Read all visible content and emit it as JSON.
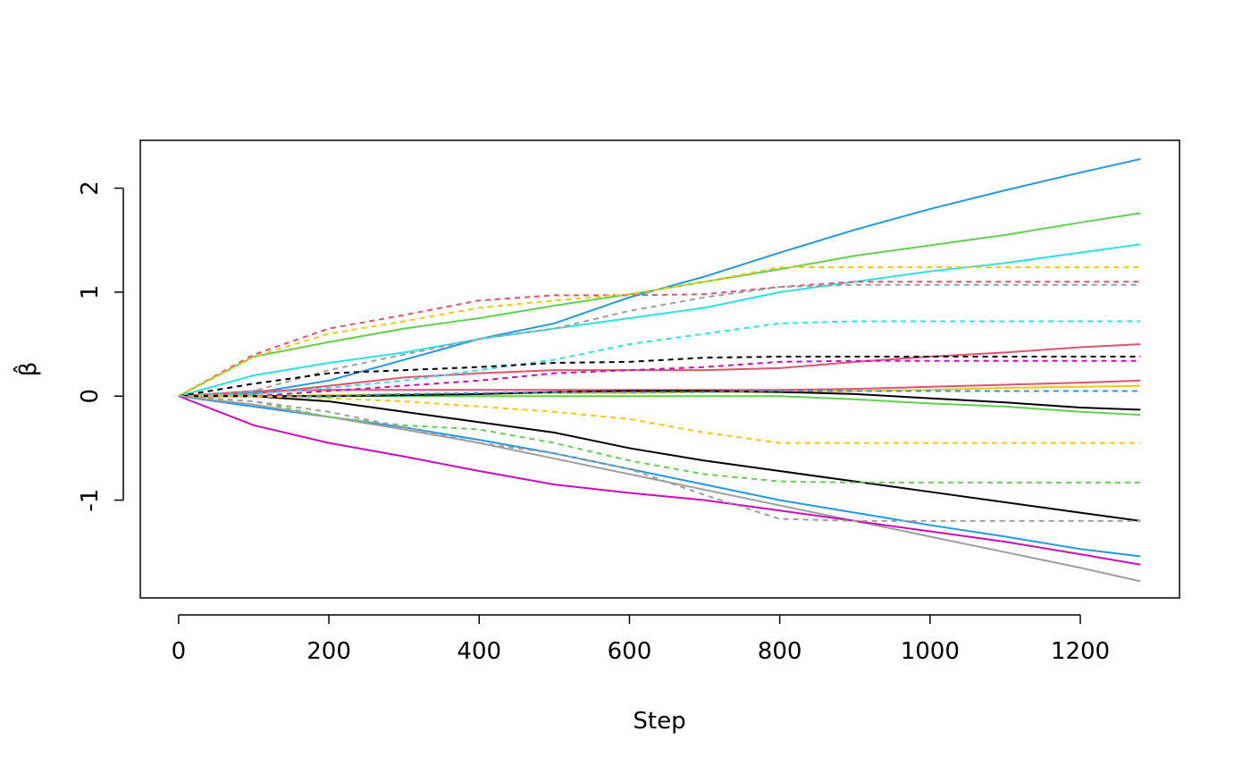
{
  "chart_data": {
    "type": "line",
    "xlabel": "Step",
    "ylabel": "β̂",
    "x": [
      0,
      100,
      200,
      300,
      400,
      500,
      600,
      700,
      800,
      900,
      1000,
      1100,
      1200,
      1280
    ],
    "xlim": [
      -51,
      1332
    ],
    "ylim": [
      -1.94,
      2.46
    ],
    "xticks": [
      0,
      200,
      400,
      600,
      800,
      1000,
      1200
    ],
    "yticks": [
      -1,
      0,
      1,
      2
    ],
    "series": [
      {
        "color": "#2297E6",
        "dashed": false,
        "values": [
          0,
          0.03,
          0.15,
          0.35,
          0.55,
          0.7,
          0.95,
          1.15,
          1.38,
          1.6,
          1.8,
          1.98,
          2.15,
          2.28
        ]
      },
      {
        "color": "#61D04F",
        "dashed": false,
        "values": [
          0,
          0.38,
          0.52,
          0.65,
          0.75,
          0.87,
          0.98,
          1.1,
          1.22,
          1.35,
          1.45,
          1.55,
          1.67,
          1.76
        ]
      },
      {
        "color": "#28E2E5",
        "dashed": false,
        "values": [
          0,
          0.2,
          0.32,
          0.42,
          0.55,
          0.65,
          0.75,
          0.85,
          1.0,
          1.1,
          1.2,
          1.28,
          1.38,
          1.46
        ]
      },
      {
        "color": "#DF536B",
        "dashed": false,
        "values": [
          0,
          0.02,
          0.1,
          0.18,
          0.22,
          0.25,
          0.25,
          0.25,
          0.27,
          0.33,
          0.38,
          0.42,
          0.47,
          0.5
        ]
      },
      {
        "color": "#DF536B",
        "dashed": false,
        "values": [
          0,
          0.05,
          0.06,
          0.06,
          0.06,
          0.06,
          0.06,
          0.06,
          0.06,
          0.07,
          0.09,
          0.11,
          0.13,
          0.15
        ]
      },
      {
        "color": "#F5C710",
        "dashed": false,
        "values": [
          0,
          0,
          0.01,
          0.02,
          0.02,
          0.03,
          0.03,
          0.04,
          0.04,
          0.05,
          0.06,
          0.08,
          0.09,
          0.1
        ]
      },
      {
        "color": "#61D04F",
        "dashed": false,
        "values": [
          0,
          0,
          0,
          0,
          0,
          0,
          0,
          0,
          0,
          -0.03,
          -0.07,
          -0.1,
          -0.15,
          -0.18
        ]
      },
      {
        "color": "#000000",
        "dashed": false,
        "values": [
          0,
          0,
          0,
          0.01,
          0.02,
          0.04,
          0.05,
          0.05,
          0.04,
          0.02,
          -0.02,
          -0.06,
          -0.11,
          -0.13
        ]
      },
      {
        "color": "#000000",
        "dashed": false,
        "values": [
          0,
          0,
          -0.05,
          -0.15,
          -0.25,
          -0.35,
          -0.5,
          -0.62,
          -0.72,
          -0.82,
          -0.92,
          -1.02,
          -1.12,
          -1.2
        ]
      },
      {
        "color": "#2297E6",
        "dashed": false,
        "values": [
          0,
          -0.1,
          -0.2,
          -0.3,
          -0.42,
          -0.55,
          -0.7,
          -0.85,
          -1.0,
          -1.12,
          -1.24,
          -1.35,
          -1.47,
          -1.54
        ]
      },
      {
        "color": "#9E9E9E",
        "dashed": false,
        "values": [
          0,
          -0.08,
          -0.2,
          -0.32,
          -0.45,
          -0.6,
          -0.75,
          -0.9,
          -1.05,
          -1.2,
          -1.35,
          -1.5,
          -1.65,
          -1.78
        ]
      },
      {
        "color": "#CD0BBC",
        "dashed": false,
        "values": [
          0,
          -0.28,
          -0.45,
          -0.58,
          -0.72,
          -0.85,
          -0.93,
          -1.0,
          -1.1,
          -1.2,
          -1.3,
          -1.4,
          -1.52,
          -1.62
        ]
      },
      {
        "color": "#DF536B",
        "dashed": true,
        "values": [
          0,
          0.4,
          0.65,
          0.78,
          0.92,
          0.97,
          0.97,
          0.98,
          1.05,
          1.1,
          1.1,
          1.1,
          1.1,
          1.1
        ]
      },
      {
        "color": "#F5C710",
        "dashed": true,
        "values": [
          0,
          0.38,
          0.6,
          0.72,
          0.85,
          0.92,
          0.98,
          1.1,
          1.24,
          1.24,
          1.24,
          1.24,
          1.24,
          1.24
        ]
      },
      {
        "color": "#9E9E9E",
        "dashed": true,
        "values": [
          0,
          0.05,
          0.25,
          0.4,
          0.55,
          0.65,
          0.82,
          0.95,
          1.05,
          1.07,
          1.07,
          1.07,
          1.07,
          1.07
        ]
      },
      {
        "color": "#28E2E5",
        "dashed": true,
        "values": [
          0,
          0.02,
          0.08,
          0.15,
          0.25,
          0.35,
          0.5,
          0.6,
          0.7,
          0.72,
          0.72,
          0.72,
          0.72,
          0.72
        ]
      },
      {
        "color": "#000000",
        "dashed": true,
        "values": [
          0,
          0.12,
          0.22,
          0.25,
          0.28,
          0.32,
          0.33,
          0.37,
          0.38,
          0.38,
          0.38,
          0.38,
          0.38,
          0.38
        ]
      },
      {
        "color": "#CD0BBC",
        "dashed": true,
        "values": [
          0,
          0,
          0.05,
          0.1,
          0.15,
          0.22,
          0.25,
          0.28,
          0.33,
          0.34,
          0.34,
          0.34,
          0.34,
          0.34
        ]
      },
      {
        "color": "#2297E6",
        "dashed": true,
        "values": [
          0,
          0,
          0,
          0.02,
          0.03,
          0.04,
          0.04,
          0.04,
          0.05,
          0.05,
          0.05,
          0.05,
          0.05,
          0.05
        ]
      },
      {
        "color": "#F5C710",
        "dashed": true,
        "values": [
          0,
          0,
          -0.02,
          -0.05,
          -0.1,
          -0.15,
          -0.22,
          -0.35,
          -0.45,
          -0.45,
          -0.45,
          -0.45,
          -0.45,
          -0.45
        ]
      },
      {
        "color": "#61D04F",
        "dashed": true,
        "values": [
          0,
          -0.05,
          -0.2,
          -0.28,
          -0.32,
          -0.45,
          -0.62,
          -0.75,
          -0.82,
          -0.83,
          -0.83,
          -0.83,
          -0.83,
          -0.83
        ]
      },
      {
        "color": "#9E9E9E",
        "dashed": true,
        "values": [
          0,
          -0.05,
          -0.15,
          -0.3,
          -0.45,
          -0.55,
          -0.7,
          -0.95,
          -1.18,
          -1.2,
          -1.2,
          -1.2,
          -1.2,
          -1.2
        ]
      }
    ]
  }
}
